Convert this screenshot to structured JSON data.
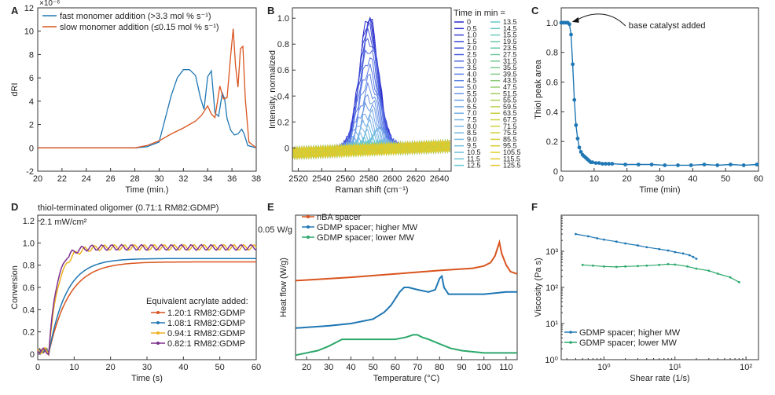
{
  "panels": {
    "A": "A",
    "B": "B",
    "C": "C",
    "D": "D",
    "E": "E",
    "F": "F"
  },
  "chart_data": [
    {
      "id": "A",
      "type": "line",
      "xlabel": "Time (min.)",
      "ylabel": "dRI",
      "y_multiplier": "×10⁻⁶",
      "xlim": [
        20,
        38
      ],
      "ylim": [
        -2,
        12
      ],
      "xticks": [
        20,
        22,
        24,
        26,
        28,
        30,
        32,
        34,
        36,
        38
      ],
      "yticks": [
        -2,
        0,
        2,
        4,
        6,
        8,
        10,
        12
      ],
      "legend_position": "top-left",
      "series": [
        {
          "name": "fast monomer addition (>3.3 mol % s⁻¹)",
          "color": "#1f77b4",
          "x": [
            20,
            28,
            29,
            30,
            30.5,
            31,
            31.5,
            32,
            32.5,
            33,
            33.4,
            33.7,
            34,
            34.3,
            34.6,
            34.9,
            35.2,
            35.4,
            35.6,
            35.9,
            36.2,
            36.5,
            36.8,
            37,
            37.3,
            38
          ],
          "y": [
            0,
            0,
            0.1,
            0.5,
            2.5,
            4.5,
            6.0,
            6.7,
            6.7,
            6.2,
            4.3,
            3.3,
            6.1,
            6.6,
            3.0,
            2.7,
            4.7,
            4.2,
            2.5,
            1.5,
            1.1,
            1.2,
            1.6,
            1.2,
            0.2,
            0
          ]
        },
        {
          "name": "slow monomer addition (≤0.15 mol % s⁻¹)",
          "color": "#d9541e",
          "x": [
            20,
            28,
            29,
            30,
            31,
            32,
            33,
            33.5,
            34,
            34.3,
            34.6,
            35,
            35.3,
            35.6,
            35.9,
            36.1,
            36.3,
            36.5,
            36.7,
            36.9,
            37.1,
            37.4,
            38
          ],
          "y": [
            0,
            0,
            0.2,
            0.6,
            1.2,
            1.7,
            2.3,
            2.8,
            3.6,
            2.9,
            2.6,
            5.3,
            4.2,
            4.3,
            8.0,
            10.2,
            7.0,
            5.2,
            8.5,
            8.7,
            4.2,
            0.5,
            0
          ]
        }
      ]
    },
    {
      "id": "B",
      "type": "line",
      "xlabel": "Raman shift (cm⁻¹)",
      "ylabel": "Intensity, normalized",
      "xlim": [
        2515,
        2650
      ],
      "ylim": [
        -0.18,
        1.08
      ],
      "xticks": [
        2520,
        2540,
        2560,
        2580,
        2600,
        2620,
        2640
      ],
      "yticks": [
        0,
        0.2,
        0.4,
        0.6,
        0.8,
        1.0
      ],
      "ytick_labels": [
        "0",
        "0.2",
        "0.4",
        "0.6",
        "0.8",
        "1.0"
      ],
      "legend_title": "Time in min =",
      "legend_col1": [
        "0",
        "0.5",
        "1.0",
        "1.5",
        "2.0",
        "2.5",
        "3.0",
        "3.5",
        "4.0",
        "4.5",
        "5.0",
        "5.5",
        "6.0",
        "6.5",
        "7.0",
        "7.5",
        "8.0",
        "8.5",
        "9.0",
        "9.5",
        "10.5",
        "11.5",
        "12.5"
      ],
      "legend_col2": [
        "13.5",
        "14.5",
        "15.5",
        "19.5",
        "23.5",
        "27.5",
        "31.5",
        "35.5",
        "39.5",
        "43.5",
        "47.5",
        "51.5",
        "55.5",
        "59.5",
        "63.5",
        "67.5",
        "71.5",
        "75.5",
        "85.5",
        "95.5",
        "105.5",
        "115.5",
        "125.5"
      ],
      "peak_center": 2580,
      "peak_heights": [
        1.03,
        1.0,
        0.98,
        0.95,
        0.9,
        0.85,
        0.78,
        0.7,
        0.62,
        0.55,
        0.47,
        0.4,
        0.34,
        0.28,
        0.23,
        0.19,
        0.15,
        0.12,
        0.09,
        0.07,
        0.05,
        0.04,
        0.03,
        0.02,
        0.02,
        0.01,
        0.01,
        0.0,
        0.0,
        0.0,
        0.0,
        0.0,
        0.0,
        0.0,
        0.0,
        0.0,
        0.0,
        0.0,
        0.0,
        0.0,
        0.0,
        0.0,
        0.0,
        0.0,
        0.0,
        0.0
      ]
    },
    {
      "id": "C",
      "type": "line",
      "xlabel": "Time (min)",
      "ylabel": "Thiol peak area",
      "xlim": [
        0,
        60
      ],
      "ylim": [
        0,
        1.1
      ],
      "xticks": [
        0,
        10,
        20,
        30,
        40,
        50,
        60
      ],
      "yticks": [
        0,
        0.2,
        0.4,
        0.6,
        0.8,
        1.0
      ],
      "ytick_labels": [
        "0",
        "0.2",
        "0.4",
        "0.6",
        "0.8",
        "1.0"
      ],
      "annotation": "base catalyst added",
      "series": [
        {
          "name": "",
          "color": "#1f77b4",
          "x": [
            0,
            0.5,
            1,
            1.5,
            2,
            2.5,
            3,
            3.5,
            4,
            4.5,
            5,
            5.5,
            6,
            6.5,
            7,
            7.5,
            8,
            8.5,
            9,
            9.5,
            10.5,
            11.5,
            12.5,
            13.5,
            14.5,
            15.5,
            19.5,
            23.5,
            27.5,
            31.5,
            35.5,
            39.5,
            43.5,
            47.5,
            51.5,
            55.5,
            59.5
          ],
          "y": [
            1.0,
            1.0,
            1.0,
            1.0,
            1.0,
            0.99,
            0.92,
            0.72,
            0.48,
            0.31,
            0.22,
            0.16,
            0.13,
            0.11,
            0.1,
            0.09,
            0.08,
            0.07,
            0.06,
            0.06,
            0.055,
            0.055,
            0.05,
            0.05,
            0.05,
            0.05,
            0.045,
            0.045,
            0.045,
            0.04,
            0.04,
            0.04,
            0.045,
            0.04,
            0.045,
            0.04,
            0.045
          ]
        }
      ]
    },
    {
      "id": "D",
      "type": "line",
      "title": "thiol-terminated oligomer (0.71:1 RM82:GDMP)",
      "subtitle": "2.1 mW/cm²",
      "xlabel": "Time (s)",
      "ylabel": "Conversion",
      "xlim": [
        0,
        60
      ],
      "ylim": [
        -0.05,
        1.25
      ],
      "xticks": [
        0,
        10,
        20,
        30,
        40,
        50,
        60
      ],
      "yticks": [
        0,
        0.2,
        0.4,
        0.6,
        0.8,
        1.0,
        1.2
      ],
      "ytick_labels": [
        "0",
        "0.2",
        "0.4",
        "0.6",
        "0.8",
        "1.0",
        "1.2"
      ],
      "legend_title": "Equivalent acrylate added:",
      "series": [
        {
          "name": "1.20:1 RM82:GDMP",
          "color": "#d9541e",
          "final": 0.83,
          "rate": 0.18
        },
        {
          "name": "1.08:1 RM82:GDMP",
          "color": "#1f77b4",
          "final": 0.86,
          "rate": 0.2
        },
        {
          "name": "0.94:1 RM82:GDMP",
          "color": "#edb120",
          "final": 0.96,
          "rate": 0.35
        },
        {
          "name": "0.82:1 RM82:GDMP",
          "color": "#7e2f8e",
          "final": 0.96,
          "rate": 0.4
        }
      ]
    },
    {
      "id": "E",
      "type": "line",
      "xlabel": "Temperature (°C)",
      "ylabel": "Heat flow (W/g)",
      "scale_label": "0.05 W/g",
      "xlim": [
        15,
        115
      ],
      "xticks": [
        20,
        30,
        40,
        50,
        60,
        70,
        80,
        90,
        100,
        110
      ],
      "series": [
        {
          "name": "nBA spacer",
          "color": "#d9541e",
          "x": [
            15,
            40,
            60,
            80,
            95,
            100,
            103,
            105,
            106,
            107,
            108,
            110,
            112,
            115
          ],
          "y": [
            0.33,
            0.345,
            0.36,
            0.375,
            0.385,
            0.395,
            0.41,
            0.44,
            0.47,
            0.5,
            0.45,
            0.4,
            0.37,
            0.36
          ]
        },
        {
          "name": "GDMP spacer; higher MW",
          "color": "#1f77b4",
          "x": [
            15,
            30,
            40,
            50,
            55,
            58,
            60,
            62,
            64,
            66,
            70,
            75,
            78,
            80,
            81,
            82,
            84,
            86,
            90,
            100,
            110,
            115
          ],
          "y": [
            0.12,
            0.13,
            0.14,
            0.16,
            0.19,
            0.22,
            0.25,
            0.28,
            0.3,
            0.3,
            0.29,
            0.28,
            0.29,
            0.34,
            0.35,
            0.3,
            0.27,
            0.27,
            0.27,
            0.27,
            0.28,
            0.28
          ]
        },
        {
          "name": "GDMP spacer; lower MW",
          "color": "#2ca86a",
          "x": [
            15,
            25,
            30,
            34,
            36,
            40,
            50,
            60,
            65,
            68,
            70,
            72,
            75,
            80,
            85,
            90,
            100,
            110,
            115
          ],
          "y": [
            0.0,
            0.02,
            0.04,
            0.06,
            0.07,
            0.07,
            0.07,
            0.07,
            0.08,
            0.09,
            0.09,
            0.08,
            0.07,
            0.05,
            0.03,
            0.02,
            0.01,
            0.01,
            0.01
          ]
        }
      ]
    },
    {
      "id": "F",
      "type": "line",
      "xlabel": "Shear rate (1/s)",
      "ylabel": "Viscosity (Pa s)",
      "xscale": "log",
      "yscale": "log",
      "xlim": [
        0.25,
        150
      ],
      "ylim": [
        1,
        10000
      ],
      "xticks": [
        1,
        10,
        100
      ],
      "xtick_labels": [
        "10⁰",
        "10¹",
        "10²"
      ],
      "yticks": [
        1,
        10,
        100,
        1000
      ],
      "ytick_labels": [
        "10⁰",
        "10¹",
        "10²",
        "10³"
      ],
      "legend_position": "bottom-left",
      "series": [
        {
          "name": "GDMP spacer; higher MW",
          "color": "#1f77b4",
          "x": [
            0.4,
            0.6,
            0.8,
            1.0,
            1.5,
            2,
            3,
            4,
            6,
            8,
            10,
            13,
            16,
            18,
            20
          ],
          "y": [
            3000,
            2600,
            2300,
            2100,
            1850,
            1650,
            1450,
            1300,
            1150,
            1050,
            950,
            870,
            780,
            700,
            620
          ]
        },
        {
          "name": "GDMP spacer; lower MW",
          "color": "#2ca86a",
          "x": [
            0.5,
            0.7,
            1,
            1.5,
            2,
            3,
            4,
            6,
            8,
            10,
            15,
            20,
            30,
            40,
            60,
            80
          ],
          "y": [
            420,
            400,
            380,
            370,
            380,
            390,
            400,
            420,
            440,
            430,
            380,
            330,
            290,
            240,
            190,
            140
          ]
        }
      ]
    }
  ]
}
